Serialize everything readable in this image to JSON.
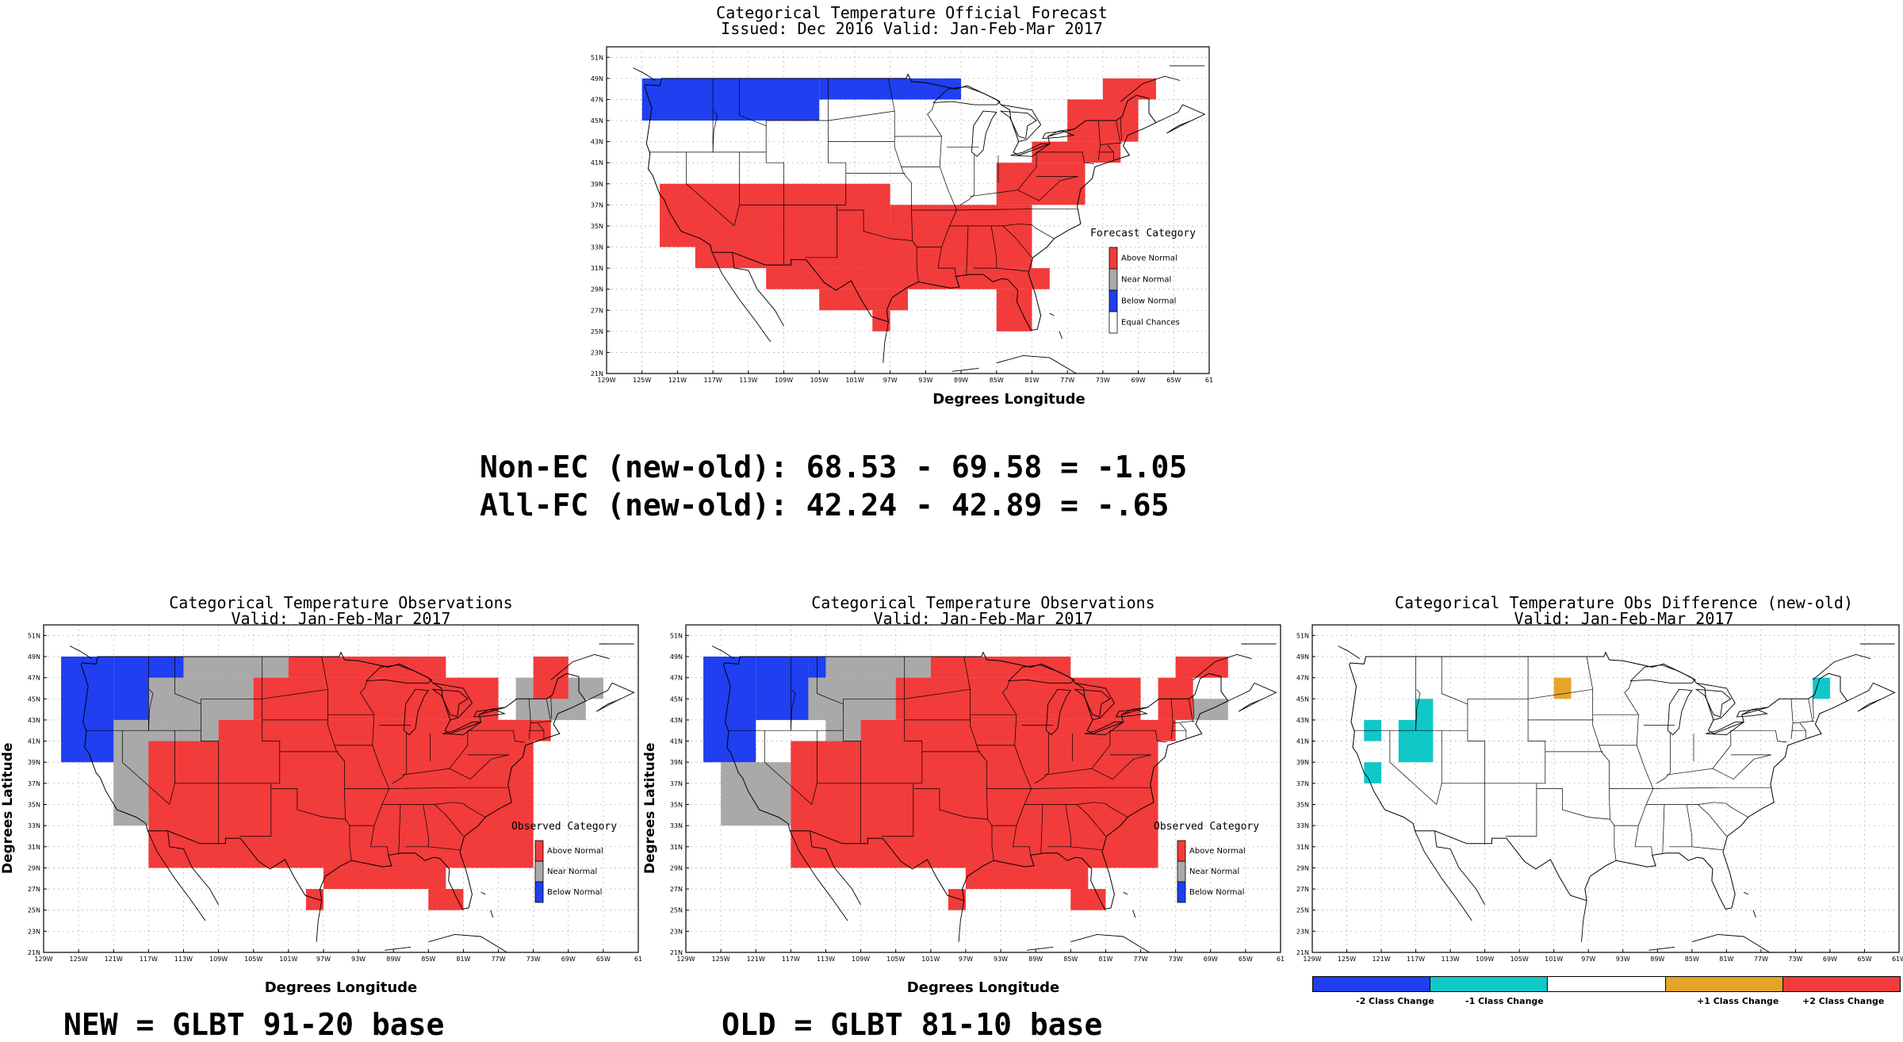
{
  "colors": {
    "above": "#f23b3b",
    "near": "#a9a9a9",
    "below": "#1f3ff0",
    "ec": "#ffffff",
    "cyan": "#10c8c8",
    "orange": "#e6a52a",
    "red2": "#f23b3b",
    "blue2": "#1f3ff0"
  },
  "axes": {
    "lat_ticks": [
      "21N",
      "23N",
      "25N",
      "27N",
      "29N",
      "31N",
      "33N",
      "35N",
      "37N",
      "39N",
      "41N",
      "43N",
      "45N",
      "47N",
      "49N",
      "51N"
    ],
    "lon_ticks": [
      "129W",
      "125W",
      "121W",
      "117W",
      "113W",
      "109W",
      "105W",
      "101W",
      "97W",
      "93W",
      "89W",
      "85W",
      "81W",
      "77W",
      "73W",
      "69W",
      "65W",
      "61"
    ],
    "lon_ticks_diff": [
      "129W",
      "125W",
      "121W",
      "117W",
      "113W",
      "109W",
      "105W",
      "101W",
      "97W",
      "93W",
      "89W",
      "85W",
      "81W",
      "77W",
      "73W",
      "69W",
      "65W",
      "61W"
    ],
    "ylabel": "Degrees Latitude",
    "xlabel": "Degrees Longitude",
    "lon_range": [
      -129,
      -61
    ],
    "lat_range": [
      21,
      52
    ]
  },
  "forecast": {
    "title1": "Categorical Temperature Official Forecast",
    "title2": "Issued: Dec 2016 Valid: Jan-Feb-Mar 2017",
    "legend_title": "Forecast Category",
    "legend": [
      "Above Normal",
      "Near Normal",
      "Below Normal",
      "Equal Chances"
    ]
  },
  "stats": {
    "line1": "Non-EC (new-old): 68.53 - 69.58 = -1.05",
    "line2": "All-FC (new-old): 42.24 - 42.89 = -.65"
  },
  "obs_new": {
    "title1": "Categorical Temperature Observations",
    "title2": "Valid: Jan-Feb-Mar 2017",
    "legend_title": "Observed Category",
    "legend": [
      "Above Normal",
      "Near Normal",
      "Below Normal"
    ],
    "footer": "NEW = GLBT 91-20 base"
  },
  "obs_old": {
    "title1": "Categorical Temperature Observations",
    "title2": "Valid: Jan-Feb-Mar 2017",
    "legend_title": "Observed Category",
    "legend": [
      "Above Normal",
      "Near Normal",
      "Below Normal"
    ],
    "footer": "OLD = GLBT 81-10 base"
  },
  "diff": {
    "title1": "Categorical Temperature Obs Difference (new-old)",
    "title2": "Valid: Jan-Feb-Mar 2017",
    "colorbar": [
      "-2 Class Change",
      "-1 Class Change",
      "+1 Class Change",
      "+2 Class Change"
    ]
  },
  "map_data": {
    "forecast_cells": {
      "below": [
        [
          -125,
          45,
          -105,
          49
        ],
        [
          -105,
          47,
          -89,
          49
        ]
      ],
      "above": [
        [
          -123,
          33,
          -97,
          39
        ],
        [
          -119,
          31,
          -89,
          35
        ],
        [
          -111,
          29,
          -89,
          31
        ],
        [
          -105,
          27,
          -95,
          29
        ],
        [
          -99,
          25,
          -97,
          27
        ],
        [
          -97,
          31,
          -81,
          37
        ],
        [
          -89,
          29,
          -79,
          31
        ],
        [
          -85,
          25,
          -81,
          29
        ],
        [
          -85,
          37,
          -75,
          41
        ],
        [
          -81,
          41,
          -71,
          43
        ],
        [
          -77,
          43,
          -69,
          47
        ],
        [
          -73,
          47,
          -67,
          49
        ]
      ],
      "near": []
    },
    "obs_new_cells": {
      "below": [
        [
          -127,
          39,
          -121,
          49
        ],
        [
          -121,
          43,
          -117,
          49
        ],
        [
          -117,
          47,
          -113,
          49
        ],
        [
          -127,
          41,
          -125,
          43
        ]
      ],
      "near": [
        [
          -121,
          35,
          -115,
          43
        ],
        [
          -117,
          43,
          -105,
          47
        ],
        [
          -113,
          47,
          -101,
          49
        ],
        [
          -115,
          41,
          -109,
          43
        ],
        [
          -121,
          33,
          -117,
          35
        ],
        [
          -75,
          43,
          -67,
          47
        ],
        [
          -71,
          45,
          -65,
          47
        ]
      ],
      "above": [
        [
          -117,
          29,
          -73,
          41
        ],
        [
          -109,
          41,
          -73,
          43
        ],
        [
          -105,
          43,
          -77,
          47
        ],
        [
          -101,
          47,
          -83,
          49
        ],
        [
          -113,
          33,
          -109,
          39
        ],
        [
          -97,
          27,
          -83,
          29
        ],
        [
          -99,
          25,
          -97,
          27
        ],
        [
          -85,
          25,
          -81,
          27
        ],
        [
          -77,
          41,
          -71,
          43
        ],
        [
          -73,
          45,
          -69,
          49
        ]
      ]
    },
    "obs_old_cells": {
      "below": [
        [
          -127,
          39,
          -121,
          49
        ],
        [
          -121,
          43,
          -115,
          49
        ],
        [
          -115,
          47,
          -113,
          49
        ],
        [
          -127,
          41,
          -123,
          43
        ]
      ],
      "near": [
        [
          -125,
          33,
          -117,
          39
        ],
        [
          -115,
          43,
          -105,
          47
        ],
        [
          -113,
          47,
          -101,
          49
        ],
        [
          -113,
          41,
          -109,
          43
        ],
        [
          -71,
          43,
          -67,
          45
        ]
      ],
      "above": [
        [
          -117,
          29,
          -75,
          41
        ],
        [
          -109,
          41,
          -73,
          43
        ],
        [
          -105,
          43,
          -77,
          47
        ],
        [
          -101,
          47,
          -85,
          49
        ],
        [
          -97,
          27,
          -83,
          29
        ],
        [
          -99,
          25,
          -97,
          27
        ],
        [
          -85,
          25,
          -81,
          27
        ],
        [
          -75,
          43,
          -71,
          47
        ],
        [
          -73,
          47,
          -67,
          49
        ]
      ]
    },
    "diff_cells": {
      "cyan": [
        [
          -117,
          43,
          -115,
          45
        ],
        [
          -123,
          41,
          -121,
          43
        ],
        [
          -119,
          39,
          -115,
          43
        ],
        [
          -123,
          37,
          -121,
          39
        ],
        [
          -71,
          45,
          -69,
          47
        ]
      ],
      "orange": [
        [
          -101,
          45,
          -99,
          47
        ]
      ]
    }
  }
}
